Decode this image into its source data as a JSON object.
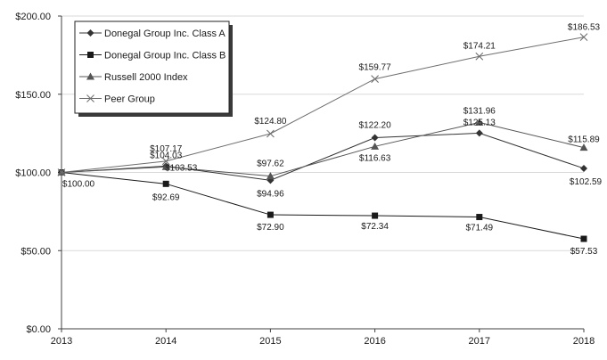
{
  "chart_data": {
    "type": "line",
    "title": "",
    "xlabel": "",
    "ylabel": "",
    "x": [
      "2013",
      "2014",
      "2015",
      "2016",
      "2017",
      "2018"
    ],
    "ylim": [
      0,
      200
    ],
    "yticks": [
      0,
      50,
      100,
      150,
      200
    ],
    "ytick_labels": [
      "$0.00",
      "$50.00",
      "$100.00",
      "$150.00",
      "$200.00"
    ],
    "legend_position": "top-left",
    "series": [
      {
        "name": "Donegal Group Inc. Class A",
        "marker": "diamond",
        "color": "#333333",
        "values": [
          100.0,
          104.03,
          94.96,
          122.2,
          125.13,
          102.59
        ],
        "labels": [
          "",
          "$104.03",
          "$94.96",
          "$122.20",
          "$125.13",
          "$102.59"
        ]
      },
      {
        "name": "Donegal Group Inc. Class B",
        "marker": "square",
        "color": "#1a1a1a",
        "values": [
          100.0,
          92.69,
          72.9,
          72.34,
          71.49,
          57.53
        ],
        "labels": [
          "$100.00",
          "$92.69",
          "$72.90",
          "$72.34",
          "$71.49",
          "$57.53"
        ]
      },
      {
        "name": "Russell 2000 Index",
        "marker": "triangle",
        "color": "#555555",
        "values": [
          100.0,
          103.53,
          97.62,
          116.63,
          131.96,
          115.89
        ],
        "labels": [
          "",
          "$103.53",
          "$97.62",
          "$116.63",
          "$131.96",
          "$115.89"
        ]
      },
      {
        "name": "Peer Group",
        "marker": "x",
        "color": "#6e6e6e",
        "values": [
          100.0,
          107.17,
          124.8,
          159.77,
          174.21,
          186.53
        ],
        "labels": [
          "",
          "$107.17",
          "$124.80",
          "$159.77",
          "$174.21",
          "$186.53"
        ]
      }
    ]
  }
}
